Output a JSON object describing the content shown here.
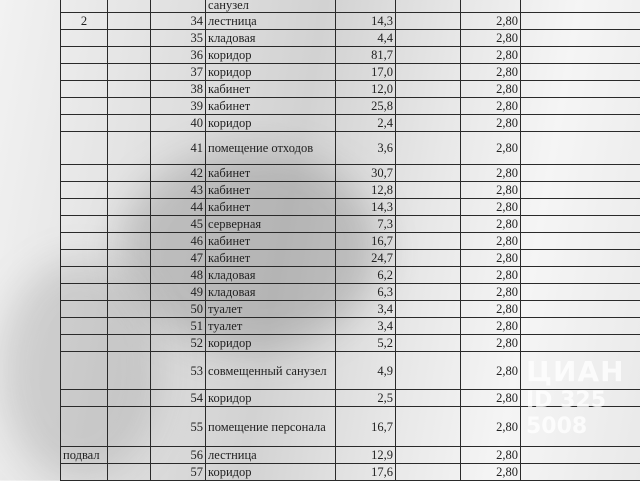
{
  "document": {
    "top_partial_row": {
      "name": "санузел"
    },
    "rows": [
      {
        "floor": "2",
        "no": "34",
        "name": "лестница",
        "area": "14,3",
        "height": "2,80"
      },
      {
        "floor": "",
        "no": "35",
        "name": "кладовая",
        "area": "4,4",
        "height": "2,80"
      },
      {
        "floor": "",
        "no": "36",
        "name": "коридор",
        "area": "81,7",
        "height": "2,80"
      },
      {
        "floor": "",
        "no": "37",
        "name": "коридор",
        "area": "17,0",
        "height": "2,80"
      },
      {
        "floor": "",
        "no": "38",
        "name": "кабинет",
        "area": "12,0",
        "height": "2,80"
      },
      {
        "floor": "",
        "no": "39",
        "name": "кабинет",
        "area": "25,8",
        "height": "2,80"
      },
      {
        "floor": "",
        "no": "40",
        "name": "коридор",
        "area": "2,4",
        "height": "2,80"
      },
      {
        "floor": "",
        "no": "41",
        "name": "помещение отходов",
        "area": "3,6",
        "height": "2,80"
      },
      {
        "floor": "",
        "no": "42",
        "name": "кабинет",
        "area": "30,7",
        "height": "2,80"
      },
      {
        "floor": "",
        "no": "43",
        "name": "кабинет",
        "area": "12,8",
        "height": "2,80"
      },
      {
        "floor": "",
        "no": "44",
        "name": "кабинет",
        "area": "14,3",
        "height": "2,80"
      },
      {
        "floor": "",
        "no": "45",
        "name": "серверная",
        "area": "7,3",
        "height": "2,80"
      },
      {
        "floor": "",
        "no": "46",
        "name": "кабинет",
        "area": "16,7",
        "height": "2,80"
      },
      {
        "floor": "",
        "no": "47",
        "name": "кабинет",
        "area": "24,7",
        "height": "2,80"
      },
      {
        "floor": "",
        "no": "48",
        "name": "кладовая",
        "area": "6,2",
        "height": "2,80"
      },
      {
        "floor": "",
        "no": "49",
        "name": "кладовая",
        "area": "6,3",
        "height": "2,80"
      },
      {
        "floor": "",
        "no": "50",
        "name": "туалет",
        "area": "3,4",
        "height": "2,80"
      },
      {
        "floor": "",
        "no": "51",
        "name": "туалет",
        "area": "3,4",
        "height": "2,80"
      },
      {
        "floor": "",
        "no": "52",
        "name": "коридор",
        "area": "5,2",
        "height": "2,80"
      },
      {
        "floor": "",
        "no": "53",
        "name": "совмещенный санузел",
        "area": "4,9",
        "height": "2,80"
      },
      {
        "floor": "",
        "no": "54",
        "name": "коридор",
        "area": "2,5",
        "height": "2,80"
      },
      {
        "floor": "",
        "no": "55",
        "name": "помещение персонала",
        "area": "16,7",
        "height": "2,80"
      },
      {
        "floor": "подвал",
        "no": "56",
        "name": "лестница",
        "area": "12,9",
        "height": "2,80"
      },
      {
        "floor": "",
        "no": "57",
        "name": "коридор",
        "area": "17,6",
        "height": "2,80"
      }
    ]
  },
  "watermark": {
    "brand": "ЦИАН",
    "id": "ID 325  5008"
  }
}
